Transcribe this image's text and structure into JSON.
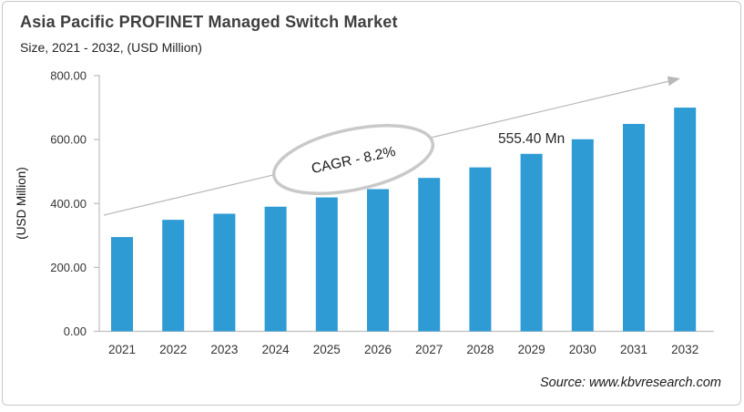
{
  "header": {
    "title": "Asia Pacific PROFINET Managed Switch Market",
    "subtitle": "Size, 2021 - 2032, (USD Million)"
  },
  "chart_data": {
    "type": "bar",
    "title": "Asia Pacific PROFINET Managed Switch Market",
    "subtitle": "Size, 2021 - 2032, (USD Million)",
    "categories": [
      "2021",
      "2022",
      "2023",
      "2024",
      "2025",
      "2026",
      "2027",
      "2028",
      "2029",
      "2030",
      "2031",
      "2032"
    ],
    "values": [
      295,
      349,
      368,
      390,
      419,
      445,
      480,
      513,
      555.4,
      601,
      649,
      700
    ],
    "xlabel": "",
    "ylabel": "(USD Million)",
    "ylim": [
      0,
      800
    ],
    "yticks": [
      0,
      200,
      400,
      600,
      800
    ],
    "ytick_labels": [
      "0.00",
      "200.00",
      "400.00",
      "600.00",
      "800.00"
    ],
    "grid": false,
    "legend": false,
    "bar_color": "#2E9BD5",
    "annotations": {
      "cagr": {
        "text": "CAGR - 8.2%"
      },
      "value_label": {
        "text": "555.40 Mn",
        "category": "2029"
      },
      "trend_arrow": true
    }
  },
  "footer": {
    "source": "Source: www.kbvresearch.com"
  },
  "colors": {
    "bar": "#2E9BD5",
    "axis_line": "#BFBFBF",
    "tick_text": "#333333",
    "title_text": "#3F3F3F",
    "body_text": "#222222",
    "annotation_text": "#1A1A1A",
    "arrow": "#B8B8B8",
    "ellipse_stroke": "#C9C9C9",
    "card_border": "#C8C8C8"
  }
}
